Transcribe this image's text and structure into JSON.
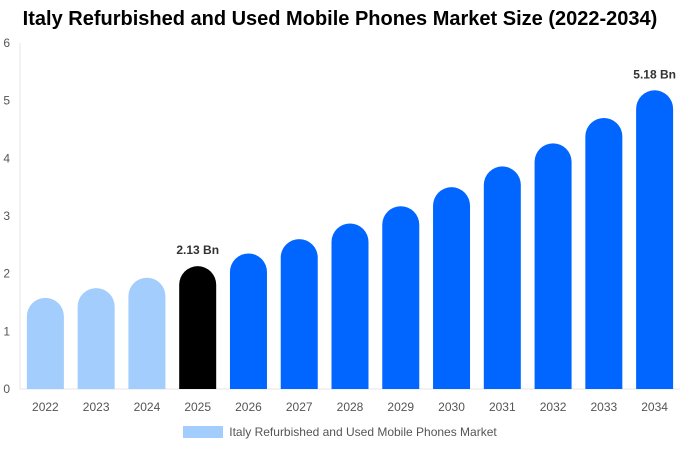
{
  "chart_data": {
    "type": "bar",
    "title": "Italy Refurbished and Used Mobile Phones Market Size (2022-2034)",
    "categories": [
      "2022",
      "2023",
      "2024",
      "2025",
      "2026",
      "2027",
      "2028",
      "2029",
      "2030",
      "2031",
      "2032",
      "2033",
      "2034"
    ],
    "series": [
      {
        "name": "Italy Refurbished and Used Mobile Phones Market",
        "values": [
          1.58,
          1.75,
          1.93,
          2.13,
          2.35,
          2.6,
          2.87,
          3.17,
          3.5,
          3.86,
          4.26,
          4.7,
          5.18
        ]
      }
    ],
    "data_labels": {
      "2025": "2.13 Bn",
      "2034": "5.18 Bn"
    },
    "ylim": [
      0,
      6
    ],
    "yticks": [
      0,
      1,
      2,
      3,
      4,
      5,
      6
    ],
    "grid": false,
    "legend_position": "bottom",
    "colors": {
      "historical": "#a3cdfc",
      "base_year": "#000000",
      "forecast": "#0066ff"
    }
  }
}
